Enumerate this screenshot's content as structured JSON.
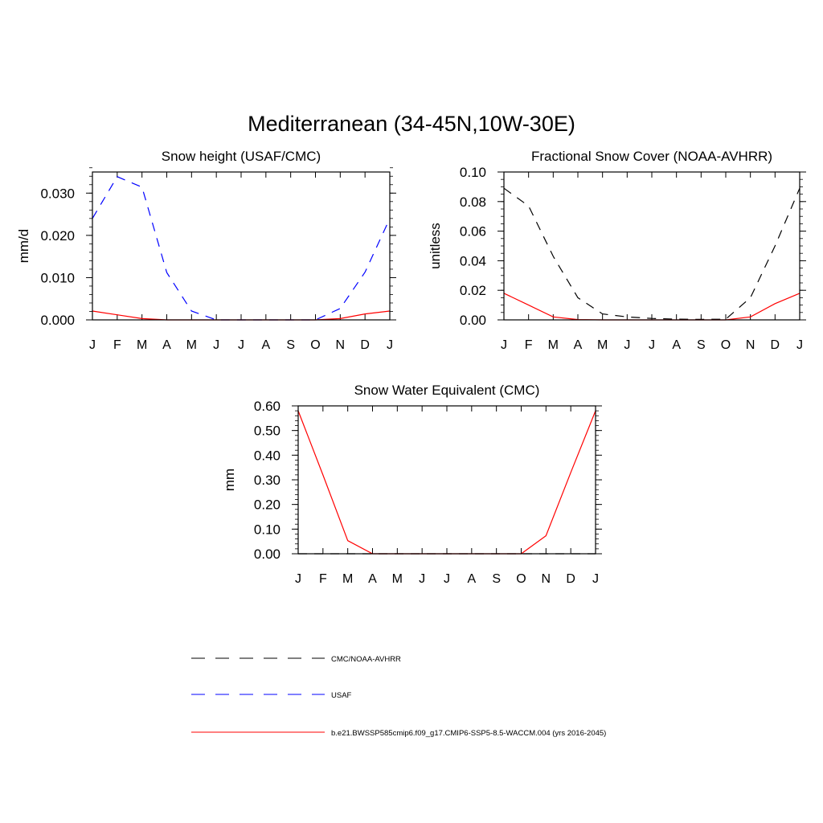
{
  "figure_title": "Mediterranean (34-45N,10W-30E)",
  "month_labels": [
    "J",
    "F",
    "M",
    "A",
    "M",
    "J",
    "J",
    "A",
    "S",
    "O",
    "N",
    "D",
    "J"
  ],
  "chart_data": [
    {
      "type": "line",
      "title": "Snow height (USAF/CMC)",
      "xlabel": "",
      "ylabel": "mm/d",
      "x": [
        "J",
        "F",
        "M",
        "A",
        "M",
        "J",
        "J",
        "A",
        "S",
        "O",
        "N",
        "D",
        "J"
      ],
      "ylim": [
        0,
        0.035
      ],
      "yticks": [
        0.0,
        0.01,
        0.02,
        0.03
      ],
      "ytick_labels": [
        "0.000",
        "0.010",
        "0.020",
        "0.030"
      ],
      "ytick_minor": 0.002,
      "series": [
        {
          "name": "USAF",
          "color": "#0000ff",
          "dash": "dashed",
          "values": [
            0.024,
            0.0339,
            0.0314,
            0.0112,
            0.0021,
            0.0,
            0.0,
            0.0,
            0.0,
            0.0,
            0.0027,
            0.0113,
            0.024
          ]
        },
        {
          "name": "b.e21.BWSSP585cmip6.f09_g17.CMIP6-SSP5-8.5-WACCM.004 (yrs 2016-2045)",
          "color": "#ff0000",
          "dash": "solid",
          "values": [
            0.0021,
            0.0012,
            0.0003,
            0.0,
            0.0,
            0.0,
            0.0,
            0.0,
            0.0,
            0.0,
            0.0003,
            0.0014,
            0.0021
          ]
        }
      ]
    },
    {
      "type": "line",
      "title": "Fractional Snow Cover (NOAA-AVHRR)",
      "xlabel": "",
      "ylabel": "unitless",
      "x": [
        "J",
        "F",
        "M",
        "A",
        "M",
        "J",
        "J",
        "A",
        "S",
        "O",
        "N",
        "D",
        "J"
      ],
      "ylim": [
        0,
        0.1
      ],
      "yticks": [
        0.0,
        0.02,
        0.04,
        0.06,
        0.08,
        0.1
      ],
      "ytick_labels": [
        "0.00",
        "0.02",
        "0.04",
        "0.06",
        "0.08",
        "0.10"
      ],
      "ytick_minor": 0.005,
      "series": [
        {
          "name": "CMC/NOAA-AVHRR",
          "color": "#000000",
          "dash": "dashed",
          "values": [
            0.089,
            0.077,
            0.043,
            0.015,
            0.004,
            0.002,
            0.001,
            0.0005,
            0.0003,
            0.0005,
            0.015,
            0.05,
            0.089
          ]
        },
        {
          "name": "b.e21.BWSSP585cmip6.f09_g17.CMIP6-SSP5-8.5-WACCM.004 (yrs 2016-2045)",
          "color": "#ff0000",
          "dash": "solid",
          "values": [
            0.018,
            0.01,
            0.002,
            0.0002,
            0.0,
            0.0,
            0.0,
            0.0,
            0.0,
            0.0,
            0.002,
            0.011,
            0.018
          ]
        }
      ]
    },
    {
      "type": "line",
      "title": "Snow Water Equivalent (CMC)",
      "xlabel": "",
      "ylabel": "mm",
      "x": [
        "J",
        "F",
        "M",
        "A",
        "M",
        "J",
        "J",
        "A",
        "S",
        "O",
        "N",
        "D",
        "J"
      ],
      "ylim": [
        0,
        0.6
      ],
      "yticks": [
        0.0,
        0.1,
        0.2,
        0.3,
        0.4,
        0.5,
        0.6
      ],
      "ytick_labels": [
        "0.00",
        "0.10",
        "0.20",
        "0.30",
        "0.40",
        "0.50",
        "0.60"
      ],
      "ytick_minor": 0.02,
      "series": [
        {
          "name": "CMC/NOAA-AVHRR",
          "color": "#000000",
          "dash": "dashed",
          "values": [
            0.0,
            0.0,
            0.0,
            0.0,
            0.0,
            0.0,
            0.0,
            0.0,
            0.0,
            0.0,
            0.0,
            0.0,
            0.0
          ]
        },
        {
          "name": "b.e21.BWSSP585cmip6.f09_g17.CMIP6-SSP5-8.5-WACCM.004 (yrs 2016-2045)",
          "color": "#ff0000",
          "dash": "solid",
          "values": [
            0.58,
            0.32,
            0.053,
            0.0,
            0.0,
            0.0,
            0.0,
            0.0,
            0.0,
            0.0,
            0.073,
            0.33,
            0.58
          ]
        }
      ]
    }
  ],
  "legend": [
    {
      "label": "CMC/NOAA-AVHRR",
      "color": "#000000",
      "dash": "dashed"
    },
    {
      "label": "USAF",
      "color": "#0000ff",
      "dash": "dashed"
    },
    {
      "label": "b.e21.BWSSP585cmip6.f09_g17.CMIP6-SSP5-8.5-WACCM.004 (yrs 2016-2045)",
      "color": "#ff0000",
      "dash": "solid"
    }
  ]
}
